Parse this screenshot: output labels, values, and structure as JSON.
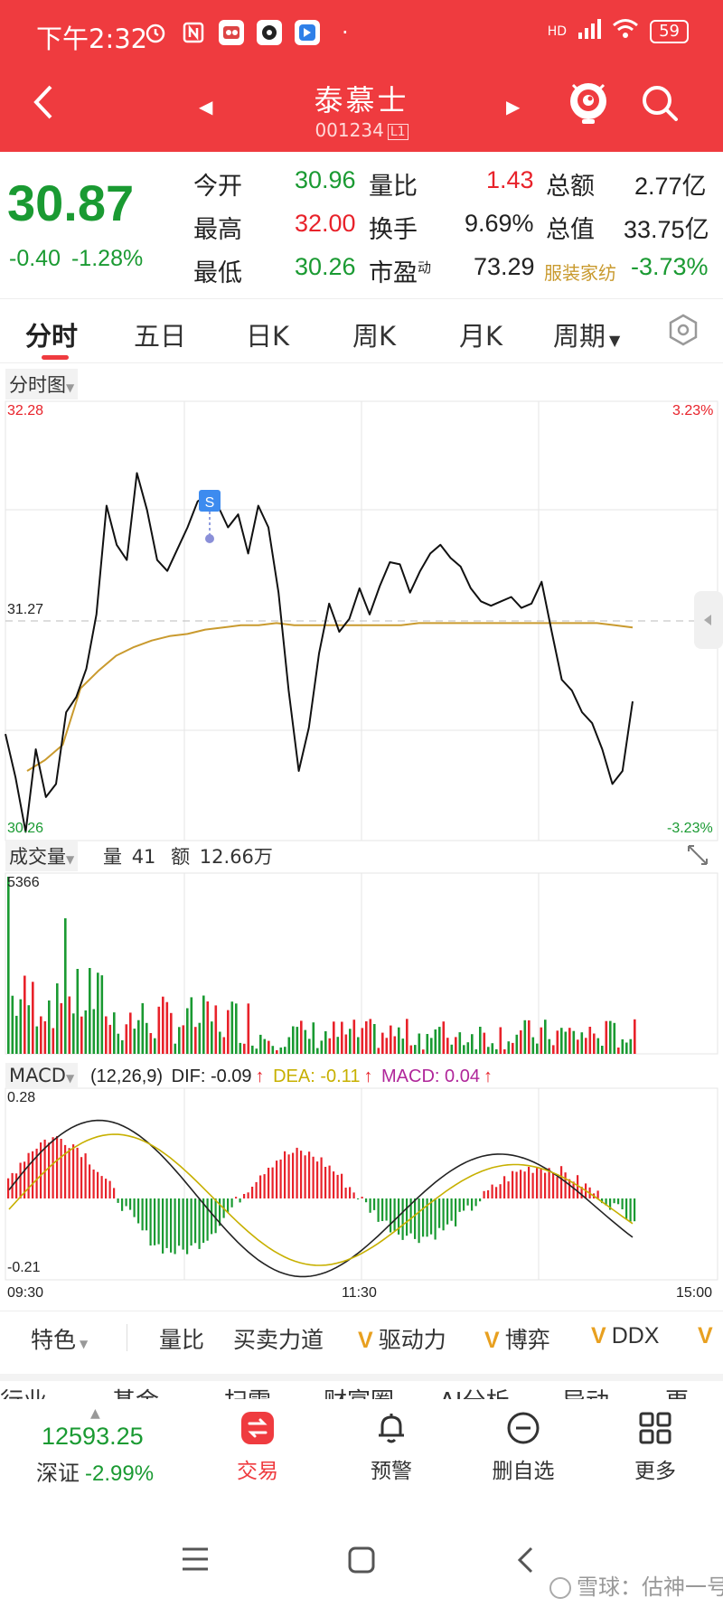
{
  "status_bar": {
    "time": "下午2:32",
    "icons": [
      "alarm-icon",
      "nfc-icon",
      "app-notify-icon",
      "app-notify-icon",
      "app-notify-icon"
    ],
    "dot": "·",
    "network": "HD",
    "battery": "59"
  },
  "nav": {
    "title": "泰慕士",
    "code": "001234",
    "code_badge": "L1",
    "prev": "◀",
    "next": "▶"
  },
  "quote": {
    "price": "30.87",
    "change": "-0.40",
    "change_pct": "-1.28%",
    "rows": [
      [
        {
          "label": "今开",
          "value": "30.96",
          "tone": "green"
        },
        {
          "label": "量比",
          "value": "1.43",
          "tone": "red"
        },
        {
          "label": "总额",
          "value": "2.77亿",
          "tone": "dark"
        }
      ],
      [
        {
          "label": "最高",
          "value": "32.00",
          "tone": "red"
        },
        {
          "label": "换手",
          "value": "9.69%",
          "tone": "dark"
        },
        {
          "label": "总值",
          "value": "33.75亿",
          "tone": "dark"
        }
      ],
      [
        {
          "label": "最低",
          "value": "30.26",
          "tone": "green"
        },
        {
          "label": "市盈",
          "sup": "动",
          "value": "73.29",
          "tone": "dark"
        },
        {
          "label": "服装家纺",
          "value": "-3.73%",
          "tone": "green"
        }
      ]
    ]
  },
  "tabs": [
    "分时",
    "五日",
    "日K",
    "周K",
    "月K",
    "周期"
  ],
  "chart": {
    "panel_label": "分时图",
    "price_high": "32.28",
    "price_mid": "31.27",
    "price_low": "30.26",
    "pct_high": "3.23%",
    "pct_low": "-3.23%",
    "trade_marker": "S",
    "volume_label": "成交量",
    "volume_qty_label": "量",
    "volume_qty": "41",
    "volume_amt_label": "额",
    "volume_amt": "12.66万",
    "volume_max": "5366",
    "macd_label": "MACD",
    "macd_params": "(12,26,9)",
    "dif": "DIF: -0.09",
    "dea": "DEA: -0.11",
    "macd": "MACD: 0.04",
    "macd_high": "0.28",
    "macd_low": "-0.21",
    "time_start": "09:30",
    "time_mid": "11:30",
    "time_end": "15:00"
  },
  "chart_data": {
    "type": "line",
    "title": "",
    "xlabel": "",
    "ylabel": "",
    "ylim": [
      30.26,
      32.28
    ],
    "x_ticks": [
      "09:30",
      "11:30",
      "15:00"
    ],
    "series": [
      {
        "values": [
          30.75,
          30.55,
          30.3,
          30.68,
          30.46,
          30.52,
          30.85,
          30.92,
          31.05,
          31.3,
          31.8,
          31.62,
          31.55,
          31.95,
          31.78,
          31.55,
          31.5,
          31.6,
          31.7,
          31.82,
          31.85,
          31.8,
          31.7,
          31.76,
          31.58,
          31.8,
          31.7,
          31.4,
          30.95,
          30.58,
          30.78,
          31.12,
          31.35,
          31.22,
          31.28,
          31.42,
          31.3,
          31.43,
          31.54,
          31.53,
          31.4,
          31.5,
          31.58,
          31.62,
          31.56,
          31.52,
          31.42,
          31.36,
          31.34,
          31.36,
          31.38,
          31.33,
          31.35,
          31.45,
          31.22,
          31.0,
          30.95,
          30.85,
          30.8,
          30.68,
          30.52,
          30.58,
          30.9
        ]
      },
      {
        "values": [
          30.58,
          30.63,
          30.7,
          30.96,
          31.04,
          31.11,
          31.15,
          31.18,
          31.2,
          31.21,
          31.23,
          31.24,
          31.25,
          31.25,
          31.26,
          31.25,
          31.25,
          31.25,
          31.25,
          31.25,
          31.25,
          31.25,
          31.26,
          31.26,
          31.26,
          31.26,
          31.26,
          31.26,
          31.26,
          31.26,
          31.26,
          31.26,
          31.26,
          31.25,
          31.24
        ]
      }
    ]
  },
  "indicators": [
    {
      "label": "特色",
      "v": false,
      "dropdown": true
    },
    {
      "label": "量比",
      "v": false
    },
    {
      "label": "买卖力道",
      "v": false
    },
    {
      "label": "驱动力",
      "v": true
    },
    {
      "label": "博弈",
      "v": true
    },
    {
      "label": "DDX",
      "v": true
    }
  ],
  "indicator_v": "V",
  "more_tabs": [
    "行业",
    "基金",
    "扫雷",
    "财富圈",
    "AI分析",
    "异动",
    "更"
  ],
  "bottom": {
    "index_value": "12593.25",
    "index_name": "深证",
    "index_pct": "-2.99%",
    "buttons": [
      "交易",
      "预警",
      "删自选",
      "更多"
    ]
  },
  "watermark": "雪球：估神一号",
  "colors": {
    "brand_red": "#ef3b3f",
    "up_red": "#e8222a",
    "down_green": "#1a9a32",
    "avg_line": "#c99a2e",
    "macd_purple": "#b0269a"
  }
}
